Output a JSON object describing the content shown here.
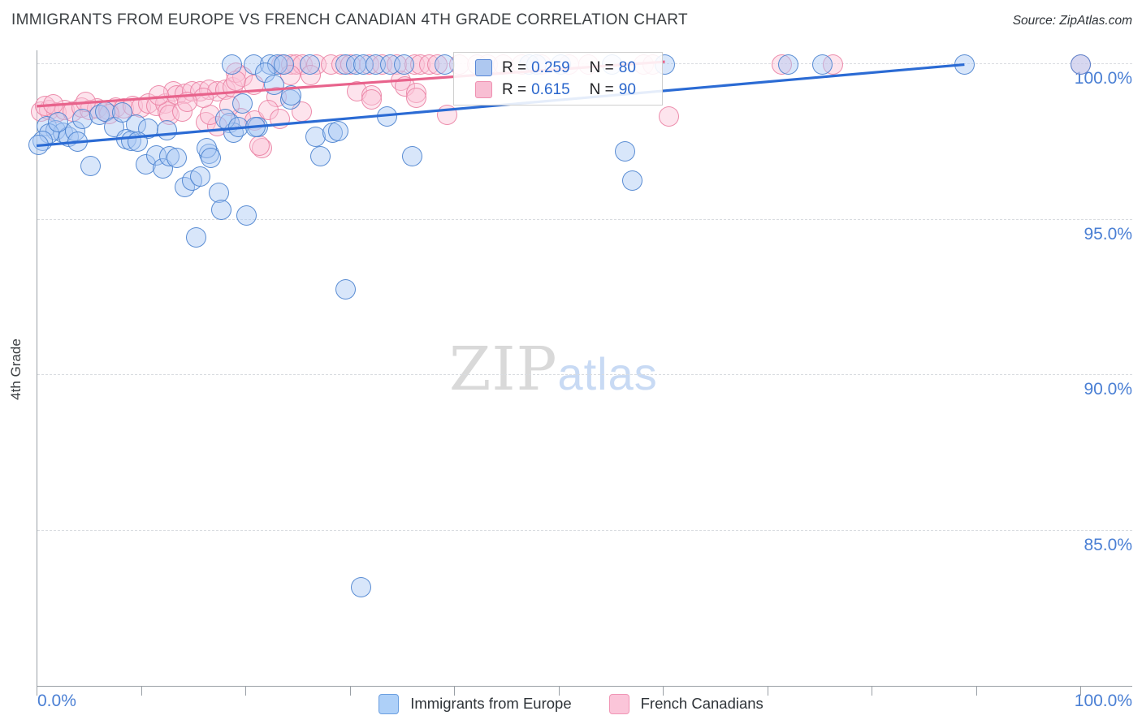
{
  "header": {
    "title": "IMMIGRANTS FROM EUROPE VS FRENCH CANADIAN 4TH GRADE CORRELATION CHART",
    "source": "Source: ZipAtlas.com"
  },
  "watermark": {
    "part1": "ZIP",
    "part2": "atlas"
  },
  "y_axis": {
    "label": "4th Grade",
    "tick_labels": [
      "100.0%",
      "95.0%",
      "90.0%",
      "85.0%"
    ],
    "tick_values": [
      100,
      95,
      90,
      85
    ]
  },
  "x_axis": {
    "min_label": "0.0%",
    "max_label": "100.0%",
    "min": 0,
    "max": 100,
    "tick_count": 11
  },
  "legend_box": {
    "rows": [
      {
        "series": "blue",
        "r_label": "R =",
        "r_value": "0.259",
        "n_label": "N =",
        "n_value": "80"
      },
      {
        "series": "pink",
        "r_label": "R =",
        "r_value": "0.615",
        "n_label": "N =",
        "n_value": "90"
      }
    ]
  },
  "bottom_legend": {
    "items": [
      {
        "series": "blue",
        "label": "Immigrants from Europe"
      },
      {
        "series": "pink",
        "label": "French Canadians"
      }
    ]
  },
  "colors": {
    "blue_point_border": "#437ccd",
    "blue_point_fill": "#a8c8f5",
    "pink_point_border": "#e97ca0",
    "pink_point_fill": "#fac3d7",
    "blue_trend": "#2b6bd4",
    "pink_trend": "#e8638c",
    "axis_label_blue": "#4a7fd4",
    "grid": "#d9dce0",
    "axis": "#9aa0a6"
  },
  "chart_data": {
    "type": "scatter",
    "title": "IMMIGRANTS FROM EUROPE VS FRENCH CANADIAN 4TH GRADE CORRELATION CHART",
    "xlabel": "Immigrants from Europe (%)",
    "ylabel": "4th Grade",
    "xlim": [
      0,
      100
    ],
    "ylim": [
      80,
      100.5
    ],
    "grid": "horizontal-dashed",
    "legend_position": "top-center",
    "series": [
      {
        "name": "Immigrants from Europe",
        "R": 0.259,
        "N": 80,
        "points": [
          [
            18.7,
            99.97
          ],
          [
            20.8,
            99.97
          ],
          [
            22.4,
            99.97
          ],
          [
            23.1,
            99.97
          ],
          [
            23.7,
            99.97
          ],
          [
            26.2,
            99.97
          ],
          [
            29.6,
            99.97
          ],
          [
            30.6,
            99.97
          ],
          [
            31.3,
            99.97
          ],
          [
            32.5,
            99.97
          ],
          [
            33.9,
            99.97
          ],
          [
            35.2,
            99.97
          ],
          [
            39.1,
            99.97
          ],
          [
            47.2,
            99.97
          ],
          [
            47.9,
            99.97
          ],
          [
            50.2,
            99.97
          ],
          [
            55.1,
            99.97
          ],
          [
            60.2,
            99.97
          ],
          [
            72.0,
            99.97
          ],
          [
            75.3,
            99.97
          ],
          [
            88.9,
            99.95
          ],
          [
            100.0,
            99.97
          ],
          [
            1.0,
            97.99
          ],
          [
            1.8,
            97.86
          ],
          [
            2.5,
            97.78
          ],
          [
            1.2,
            97.73
          ],
          [
            3.1,
            97.65
          ],
          [
            0.6,
            97.52
          ],
          [
            3.7,
            97.81
          ],
          [
            4.4,
            98.2
          ],
          [
            6.0,
            98.33
          ],
          [
            6.6,
            98.46
          ],
          [
            7.4,
            97.94
          ],
          [
            8.2,
            98.43
          ],
          [
            9.5,
            98.04
          ],
          [
            10.7,
            97.91
          ],
          [
            8.6,
            97.55
          ],
          [
            9.1,
            97.52
          ],
          [
            9.7,
            97.47
          ],
          [
            5.2,
            96.69
          ],
          [
            10.5,
            96.74
          ],
          [
            11.5,
            97.03
          ],
          [
            12.1,
            96.61
          ],
          [
            12.7,
            97.0
          ],
          [
            13.4,
            96.95
          ],
          [
            14.2,
            96.03
          ],
          [
            14.9,
            96.22
          ],
          [
            15.7,
            96.35
          ],
          [
            16.5,
            97.08
          ],
          [
            17.5,
            95.85
          ],
          [
            17.7,
            95.3
          ],
          [
            20.1,
            95.12
          ],
          [
            15.3,
            94.41
          ],
          [
            18.5,
            98.07
          ],
          [
            18.9,
            97.78
          ],
          [
            21.2,
            97.94
          ],
          [
            19.7,
            98.7
          ],
          [
            18.1,
            98.2
          ],
          [
            19.3,
            97.94
          ],
          [
            21.0,
            97.94
          ],
          [
            24.3,
            98.83
          ],
          [
            16.3,
            97.26
          ],
          [
            16.7,
            96.95
          ],
          [
            26.7,
            97.65
          ],
          [
            28.4,
            97.78
          ],
          [
            28.9,
            97.81
          ],
          [
            27.2,
            97.0
          ],
          [
            33.6,
            98.3
          ],
          [
            36.0,
            97.0
          ],
          [
            21.9,
            99.71
          ],
          [
            22.8,
            99.3
          ],
          [
            24.4,
            98.98
          ],
          [
            0.2,
            97.39
          ],
          [
            2.1,
            98.12
          ],
          [
            3.9,
            97.47
          ],
          [
            12.5,
            97.86
          ],
          [
            29.6,
            92.72
          ],
          [
            31.1,
            83.16
          ],
          [
            56.4,
            97.16
          ],
          [
            57.1,
            96.22
          ]
        ]
      },
      {
        "name": "French Canadians",
        "R": 0.615,
        "N": 90,
        "points": [
          [
            23.5,
            99.95
          ],
          [
            24.4,
            99.95
          ],
          [
            24.9,
            99.95
          ],
          [
            25.5,
            99.95
          ],
          [
            26.8,
            99.95
          ],
          [
            28.2,
            99.95
          ],
          [
            29.2,
            99.95
          ],
          [
            30.1,
            99.95
          ],
          [
            31.9,
            99.95
          ],
          [
            33.1,
            99.95
          ],
          [
            34.5,
            99.95
          ],
          [
            36.2,
            99.95
          ],
          [
            36.8,
            99.95
          ],
          [
            37.6,
            99.95
          ],
          [
            38.4,
            99.95
          ],
          [
            40.5,
            99.95
          ],
          [
            42.2,
            99.95
          ],
          [
            43.2,
            99.95
          ],
          [
            44.7,
            99.95
          ],
          [
            46.5,
            99.95
          ],
          [
            48.4,
            99.95
          ],
          [
            51.0,
            99.95
          ],
          [
            52.9,
            99.95
          ],
          [
            58.2,
            99.95
          ],
          [
            59.0,
            99.95
          ],
          [
            71.4,
            99.95
          ],
          [
            76.3,
            99.95
          ],
          [
            100.0,
            99.97
          ],
          [
            0.4,
            98.46
          ],
          [
            1.2,
            98.51
          ],
          [
            1.9,
            98.43
          ],
          [
            2.7,
            98.51
          ],
          [
            3.5,
            98.46
          ],
          [
            4.3,
            98.59
          ],
          [
            5.1,
            98.51
          ],
          [
            5.8,
            98.56
          ],
          [
            6.9,
            98.51
          ],
          [
            7.6,
            98.59
          ],
          [
            8.4,
            98.56
          ],
          [
            9.2,
            98.64
          ],
          [
            10.0,
            98.59
          ],
          [
            10.7,
            98.72
          ],
          [
            11.5,
            98.64
          ],
          [
            12.3,
            98.72
          ],
          [
            13.1,
            99.09
          ],
          [
            13.4,
            98.98
          ],
          [
            14.2,
            99.03
          ],
          [
            14.9,
            99.11
          ],
          [
            15.7,
            99.09
          ],
          [
            16.5,
            99.16
          ],
          [
            17.3,
            99.11
          ],
          [
            18.1,
            99.16
          ],
          [
            18.8,
            99.22
          ],
          [
            12.6,
            98.46
          ],
          [
            19.1,
            99.69
          ],
          [
            19.7,
            99.56
          ],
          [
            19.1,
            99.43
          ],
          [
            20.8,
            99.32
          ],
          [
            24.3,
            99.63
          ],
          [
            26.3,
            99.63
          ],
          [
            23.0,
            98.93
          ],
          [
            30.7,
            99.11
          ],
          [
            32.1,
            98.98
          ],
          [
            34.9,
            99.45
          ],
          [
            35.3,
            99.25
          ],
          [
            36.4,
            99.06
          ],
          [
            12.7,
            98.33
          ],
          [
            14.0,
            98.46
          ],
          [
            16.2,
            98.12
          ],
          [
            17.3,
            97.99
          ],
          [
            19.6,
            98.25
          ],
          [
            20.9,
            98.17
          ],
          [
            21.6,
            97.26
          ],
          [
            22.2,
            98.51
          ],
          [
            23.3,
            98.2
          ],
          [
            25.4,
            98.46
          ],
          [
            32.1,
            98.85
          ],
          [
            36.4,
            98.9
          ],
          [
            39.3,
            98.33
          ],
          [
            16.6,
            98.33
          ],
          [
            18.5,
            98.64
          ],
          [
            21.4,
            97.34
          ],
          [
            60.6,
            98.3
          ],
          [
            0.8,
            98.64
          ],
          [
            1.6,
            98.69
          ],
          [
            4.7,
            98.75
          ],
          [
            7.0,
            98.38
          ],
          [
            16.0,
            98.9
          ],
          [
            14.4,
            98.77
          ],
          [
            11.7,
            98.96
          ]
        ]
      }
    ],
    "trendlines": [
      {
        "series": "Immigrants from Europe",
        "from": [
          0,
          97.35
        ],
        "to": [
          88.9,
          99.96
        ]
      },
      {
        "series": "French Canadians",
        "from": [
          0,
          98.62
        ],
        "to": [
          60.2,
          100.05
        ]
      }
    ]
  }
}
